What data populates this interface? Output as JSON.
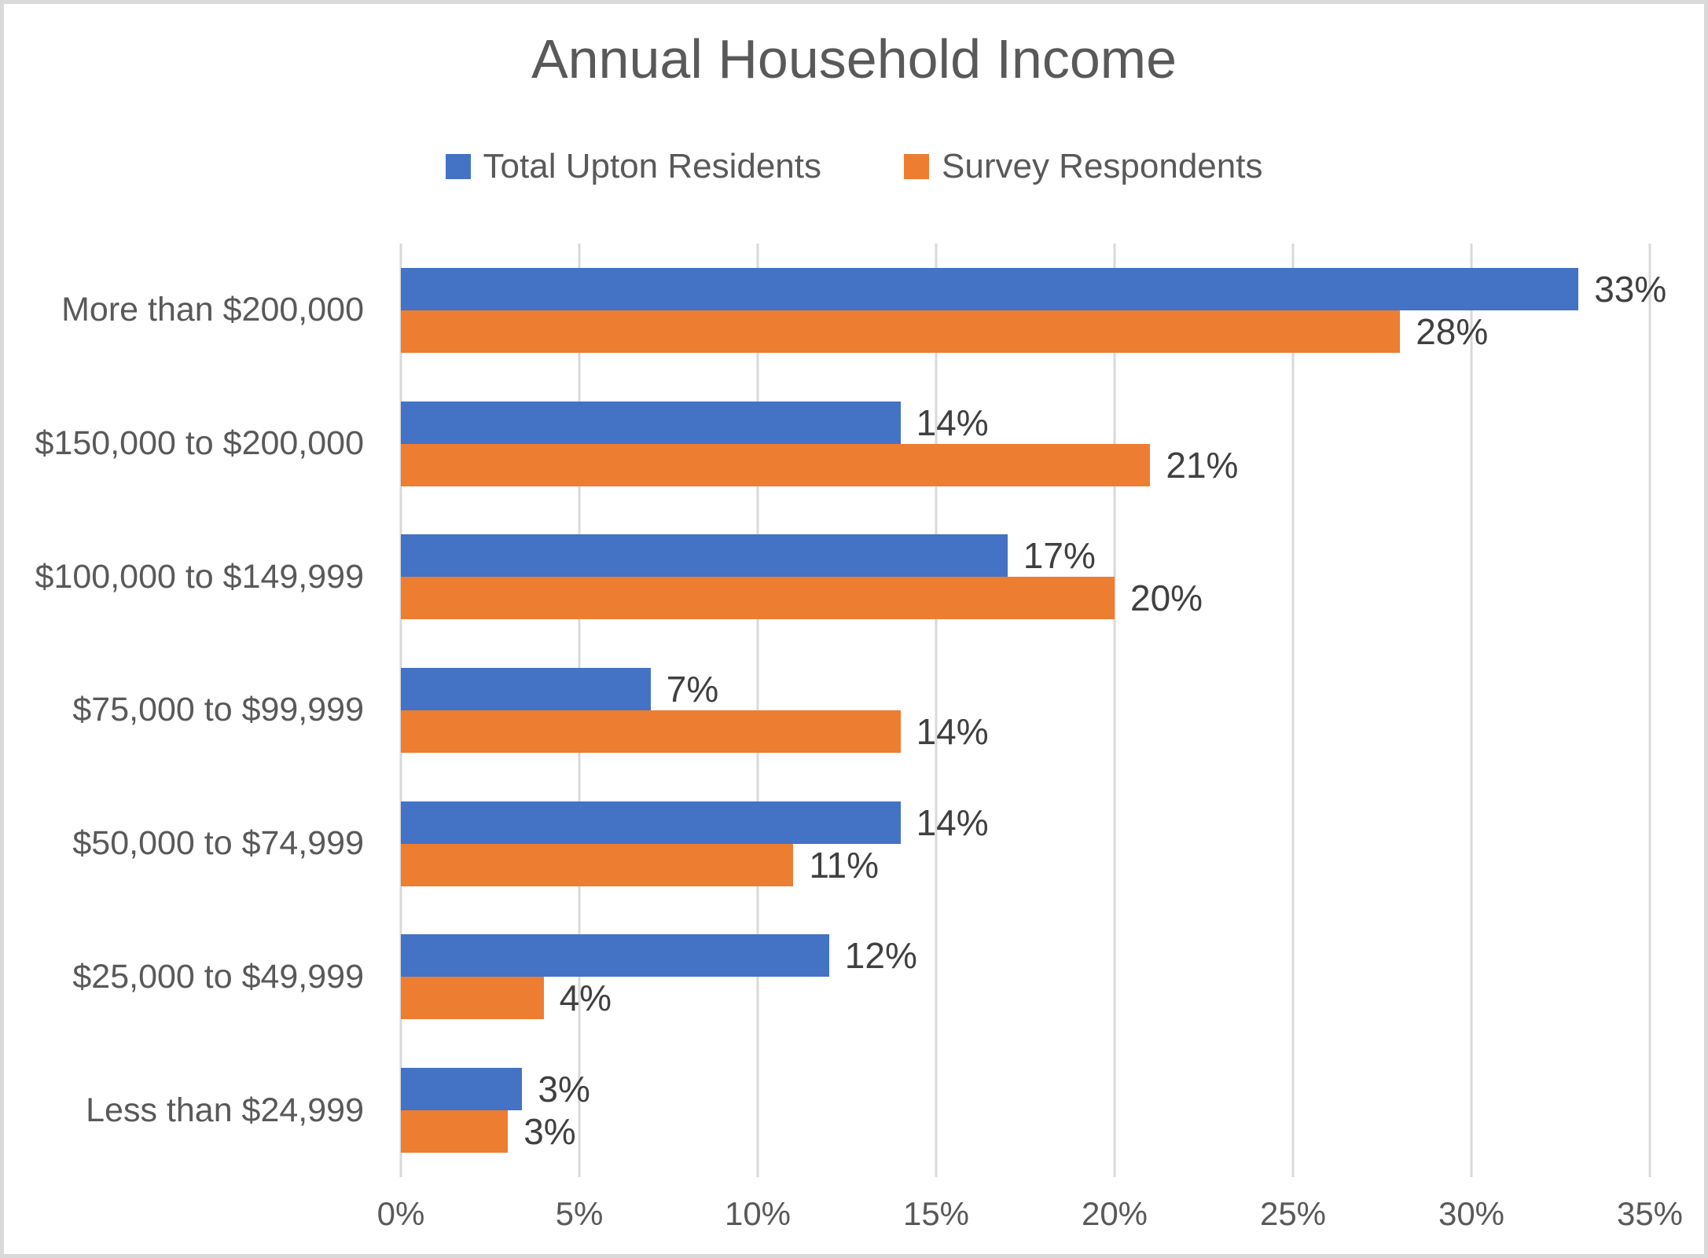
{
  "chart_data": {
    "type": "bar",
    "orientation": "horizontal",
    "title": "Annual Household Income",
    "categories": [
      "More than $200,000",
      "$150,000 to $200,000",
      "$100,000 to $149,999",
      "$75,000 to $99,999",
      "$50,000 to $74,999",
      "$25,000 to $49,999",
      "Less than $24,999"
    ],
    "series": [
      {
        "name": "Total Upton Residents",
        "color": "#4472C4",
        "values": [
          33,
          14,
          17,
          7,
          14,
          12,
          3
        ],
        "labels": [
          "33%",
          "14%",
          "17%",
          "7%",
          "14%",
          "12%",
          "3%"
        ],
        "bar_pct": [
          33,
          14,
          17,
          7,
          14,
          12,
          3.4
        ]
      },
      {
        "name": "Survey Respondents",
        "color": "#ED7D31",
        "values": [
          28,
          21,
          20,
          14,
          11,
          4,
          3
        ],
        "labels": [
          "28%",
          "21%",
          "20%",
          "14%",
          "11%",
          "4%",
          "3%"
        ],
        "bar_pct": [
          28,
          21,
          20,
          14,
          11,
          4,
          3
        ]
      }
    ],
    "x_ticks": [
      "0%",
      "5%",
      "10%",
      "15%",
      "20%",
      "25%",
      "30%",
      "35%"
    ],
    "xlim": [
      0,
      35
    ],
    "grid": true,
    "legend_position": "top",
    "xlabel": "",
    "ylabel": "",
    "colors": {
      "title_text": "#595959",
      "axis_text": "#595959",
      "data_label_text": "#404040",
      "gridline": "#D9D9D9",
      "background": "#FFFFFF",
      "border": "#D9D9D9"
    }
  }
}
